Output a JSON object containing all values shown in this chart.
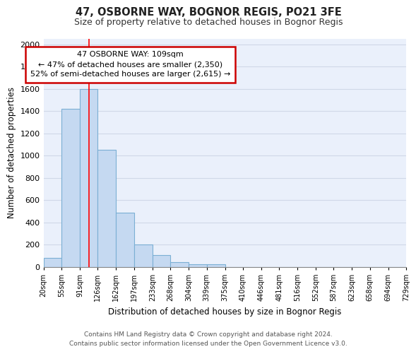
{
  "title1": "47, OSBORNE WAY, BOGNOR REGIS, PO21 3FE",
  "title2": "Size of property relative to detached houses in Bognor Regis",
  "xlabel": "Distribution of detached houses by size in Bognor Regis",
  "ylabel": "Number of detached properties",
  "bin_edges": [
    20,
    55,
    91,
    126,
    162,
    197,
    233,
    268,
    304,
    339,
    375,
    410,
    446,
    481,
    516,
    552,
    587,
    623,
    658,
    694,
    729
  ],
  "bar_heights": [
    80,
    1420,
    1600,
    1050,
    490,
    200,
    105,
    40,
    25,
    20,
    0,
    0,
    0,
    0,
    0,
    0,
    0,
    0,
    0,
    0
  ],
  "bar_color": "#c5d9f1",
  "bar_edgecolor": "#7bafd4",
  "background_color": "#eaf0fb",
  "grid_color": "#d0d8e8",
  "fig_background": "#ffffff",
  "red_line_x": 109,
  "annotation_line1": "47 OSBORNE WAY: 109sqm",
  "annotation_line2": "← 47% of detached houses are smaller (2,350)",
  "annotation_line3": "52% of semi-detached houses are larger (2,615) →",
  "annotation_box_color": "#ffffff",
  "annotation_box_edgecolor": "#cc0000",
  "ylim": [
    0,
    2050
  ],
  "yticks": [
    0,
    200,
    400,
    600,
    800,
    1000,
    1200,
    1400,
    1600,
    1800,
    2000
  ],
  "footer1": "Contains HM Land Registry data © Crown copyright and database right 2024.",
  "footer2": "Contains public sector information licensed under the Open Government Licence v3.0."
}
